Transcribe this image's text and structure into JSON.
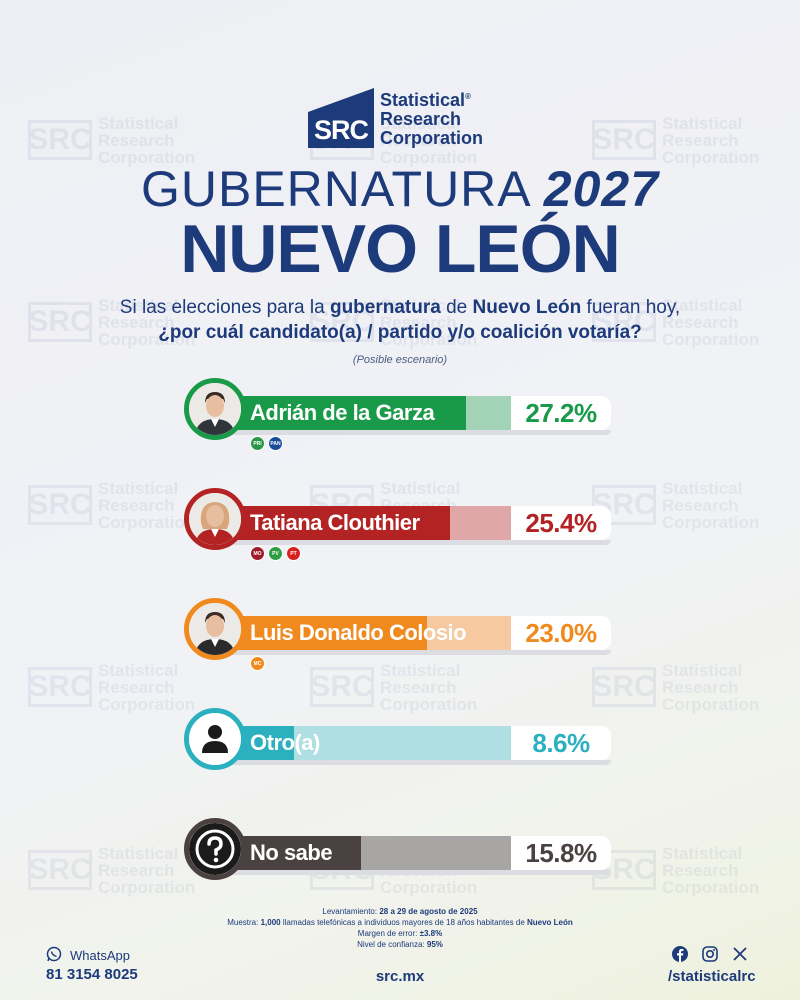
{
  "brand": {
    "logo_mark": "SRC",
    "name_line1": "Statistical",
    "name_line2": "Research",
    "name_line3": "Corporation",
    "registered": "®"
  },
  "title": {
    "line1": "GUBERNATURA",
    "year": "2027",
    "line2": "NUEVO LEÓN"
  },
  "question": {
    "p1": "Si las elecciones para la ",
    "b1": "gubernatura",
    "p2": " de ",
    "b2": "Nuevo León",
    "p3": " fueran hoy,",
    "line2": "¿por cuál candidato(a) / partido y/o coalición votaría?"
  },
  "scenario": "(Posible escenario)",
  "chart_data": {
    "type": "bar",
    "title": "GUBERNATURA 2027 NUEVO LEÓN",
    "categories": [
      "Adrián de la Garza",
      "Tatiana Clouthier",
      "Luis Donaldo Colosio",
      "Otro(a)",
      "No sabe"
    ],
    "values": [
      27.2,
      25.4,
      23.0,
      8.6,
      15.8
    ],
    "value_labels": [
      "27.2%",
      "25.4%",
      "23.0%",
      "8.6%",
      "15.8%"
    ],
    "unit": "%",
    "xlim": [
      0,
      32
    ],
    "colors": [
      "#199a48",
      "#b32323",
      "#f08a1f",
      "#2ab0be",
      "#4a4241"
    ],
    "rest_colors": [
      "#a3d4b7",
      "#e0a7a9",
      "#f6c9a0",
      "#b0dfe3",
      "#a8a5a5"
    ],
    "text_colors": [
      "#199a48",
      "#b32323",
      "#f08a1f",
      "#2ab0be",
      "#4a4241"
    ],
    "party_logos": [
      [
        "PRI",
        "PAN"
      ],
      [
        "MORENA",
        "PVEM",
        "PT"
      ],
      [
        "MC"
      ],
      [],
      []
    ],
    "party_colors": [
      [
        "#2a9648",
        "#1a4c9c"
      ],
      [
        "#a01c2a",
        "#2f9d44",
        "#d8201f"
      ],
      [
        "#f08a1f"
      ],
      [],
      []
    ]
  },
  "footer": {
    "l1a": "Levantamiento: ",
    "l1b": "28 a 29 de agosto de 2025",
    "l2a": "Muestra: ",
    "l2b": "1,000",
    "l2c": " llamadas telefónicas a individuos mayores de 18 años habitantes de ",
    "l2d": "Nuevo León",
    "l3a": "Margen de error: ",
    "l3b": "±3.8%",
    "l4a": "Nivel de confianza: ",
    "l4b": "95%"
  },
  "contact": {
    "whatsapp_label": "WhatsApp",
    "phone": "81 3154 8025",
    "site": "src.mx",
    "handle": "/statisticalrc"
  }
}
